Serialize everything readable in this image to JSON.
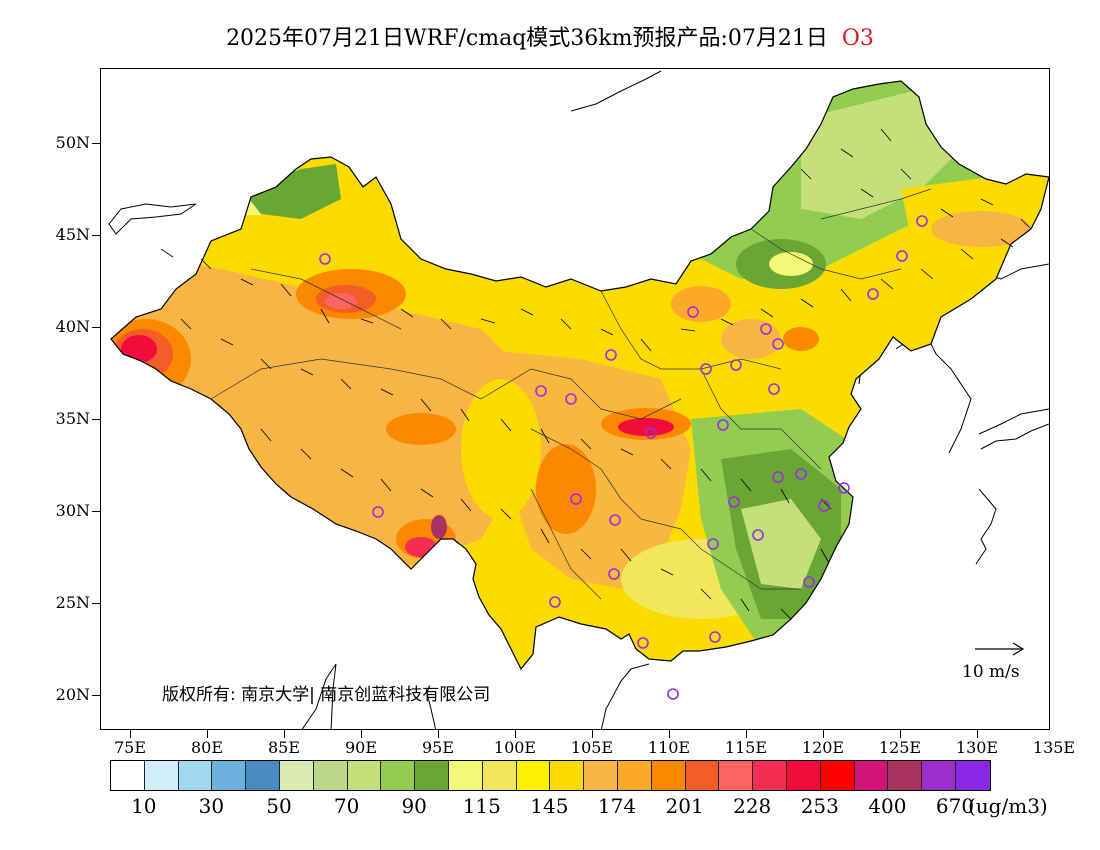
{
  "title": {
    "main": "2025年07月21日WRF/cmaq模式36km预报产品:07月21日",
    "species": "O3"
  },
  "axes": {
    "y_labels": [
      "50N",
      "45N",
      "40N",
      "35N",
      "30N",
      "25N",
      "20N"
    ],
    "x_labels": [
      "75E",
      "80E",
      "85E",
      "90E",
      "95E",
      "100E",
      "105E",
      "110E",
      "115E",
      "120E",
      "125E",
      "130E",
      "135E"
    ]
  },
  "map": {
    "region": "China",
    "variable": "O3",
    "lon_range": [
      73,
      135
    ],
    "lat_range": [
      18,
      54
    ],
    "wind_reference_label": "10 m/s"
  },
  "copyright": "版权所有: 南京大学| 南京创蓝科技有限公司",
  "colorbar": {
    "colors": [
      "#ffffff",
      "#d2eefa",
      "#a0d8f2",
      "#6cb0de",
      "#4a8cc2",
      "#dcebb4",
      "#bcd98a",
      "#c4e07a",
      "#92cc50",
      "#6aa634",
      "#f2f878",
      "#f2e65c",
      "#fef000",
      "#fcdc00",
      "#f8b444",
      "#fca828",
      "#fc8800",
      "#f45c28",
      "#fc6464",
      "#f42e50",
      "#f20c3c",
      "#fe0000",
      "#d21478",
      "#aa3260",
      "#9c2ecc",
      "#8a28e6"
    ],
    "labels": [
      "10",
      "30",
      "50",
      "70",
      "90",
      "115",
      "145",
      "174",
      "201",
      "228",
      "253",
      "400",
      "670"
    ],
    "unit": "(ug/m3)"
  }
}
